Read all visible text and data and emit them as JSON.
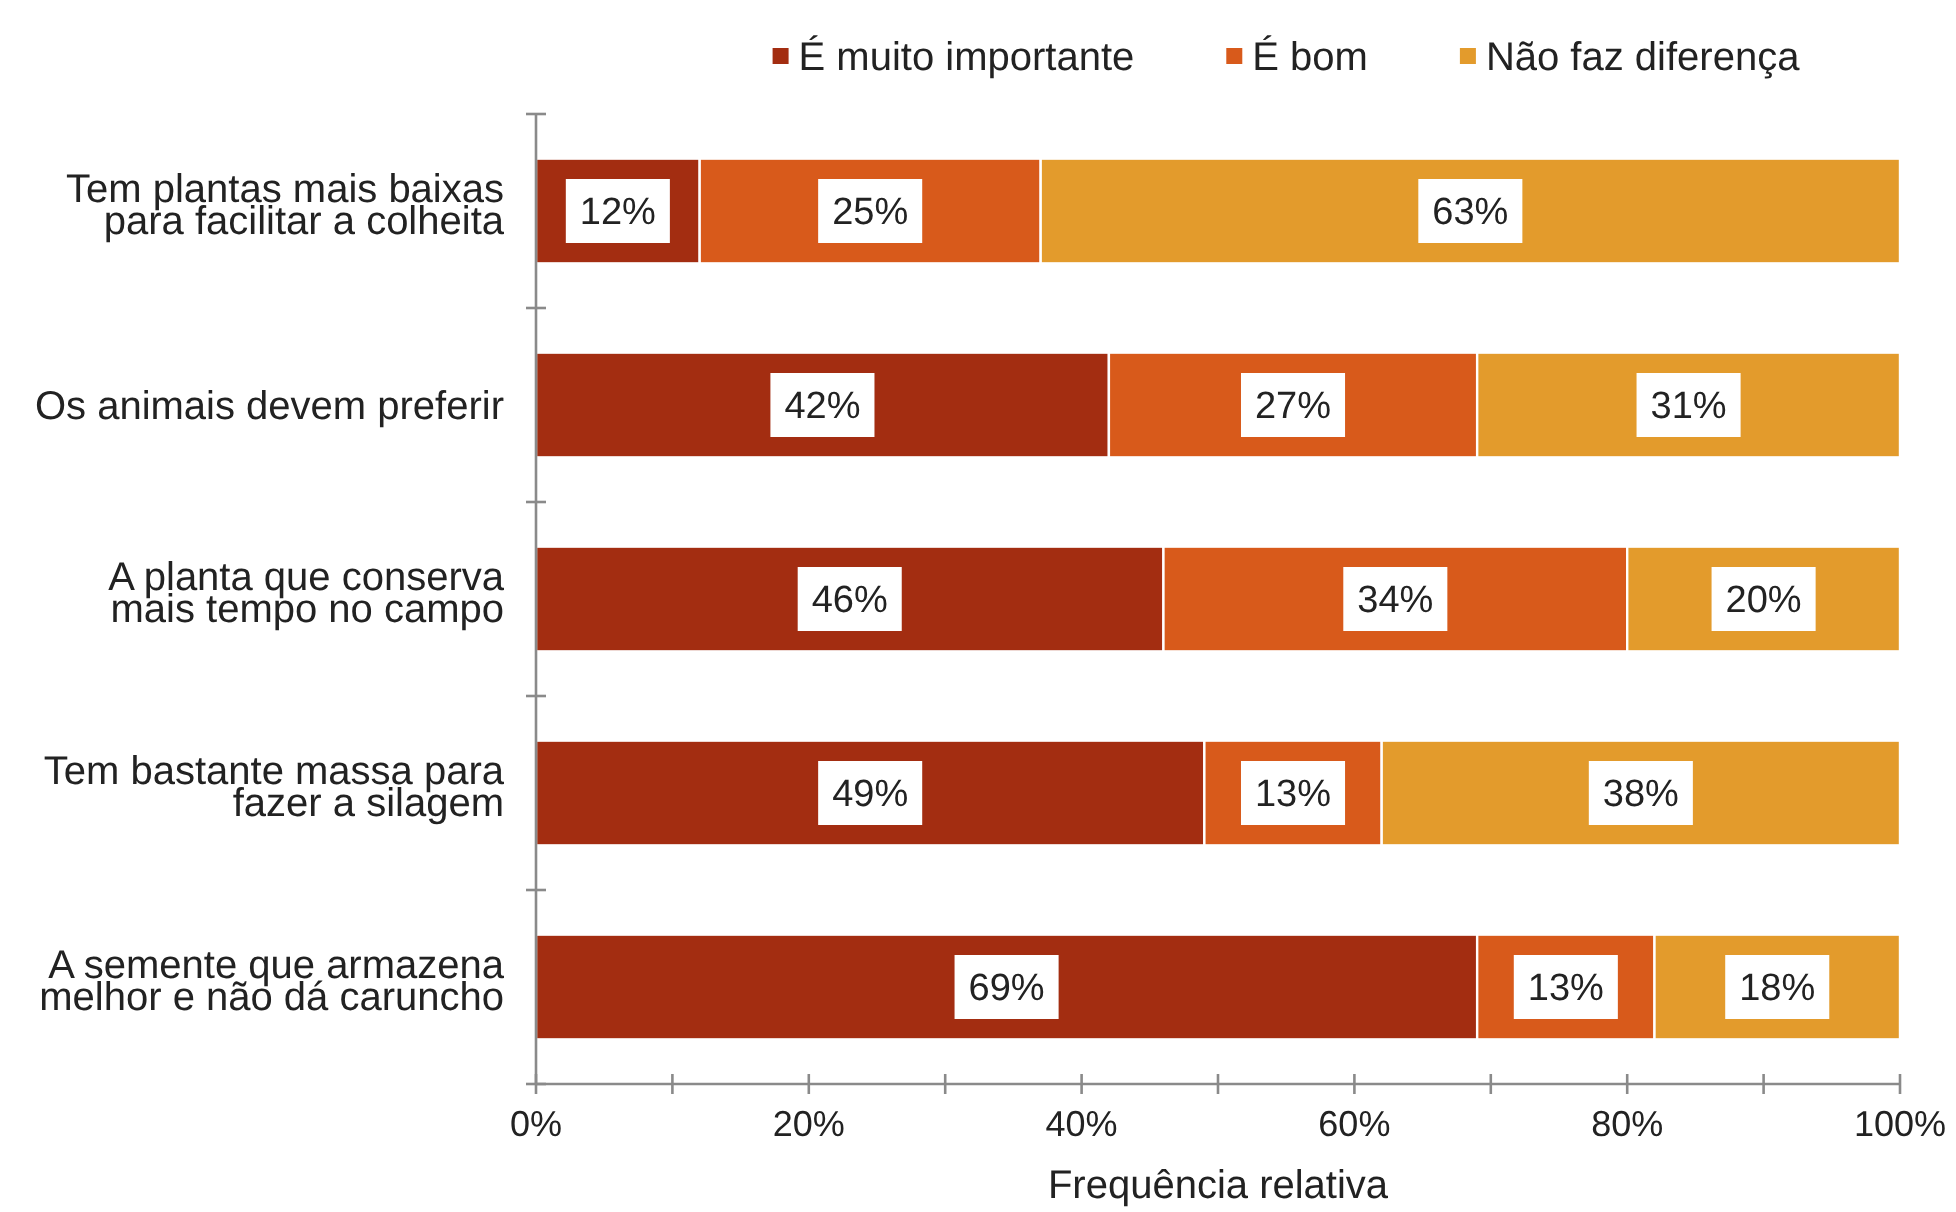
{
  "chart_data": {
    "type": "bar",
    "orientation": "horizontal",
    "stacked": true,
    "categories": [
      "Tem plantas mais baixas\npara facilitar a colheita",
      "Os animais devem preferir",
      "A planta que conserva\nmais tempo no campo",
      "Tem bastante massa para\nfazer a silagem",
      "A semente que armazena\nmelhor e não dá caruncho"
    ],
    "series": [
      {
        "name": "É muito importante",
        "color": "#a32d11",
        "values": [
          12,
          42,
          46,
          49,
          69
        ],
        "value_labels": [
          "12%",
          "42%",
          "46%",
          "49%",
          "69%"
        ]
      },
      {
        "name": "É bom",
        "color": "#d85a1b",
        "values": [
          25,
          27,
          34,
          13,
          13
        ],
        "value_labels": [
          "25%",
          "27%",
          "34%",
          "13%",
          "13%"
        ]
      },
      {
        "name": "Não faz diferença",
        "color": "#e39b2c",
        "values": [
          63,
          31,
          20,
          38,
          18
        ],
        "value_labels": [
          "63%",
          "31%",
          "20%",
          "38%",
          "18%"
        ]
      }
    ],
    "xlabel": "Frequência relativa",
    "xlim": [
      0,
      100
    ],
    "xticks": [
      {
        "value": 0,
        "label": "0%"
      },
      {
        "value": 10,
        "label": null
      },
      {
        "value": 20,
        "label": "20%"
      },
      {
        "value": 30,
        "label": null
      },
      {
        "value": 40,
        "label": "40%"
      },
      {
        "value": 50,
        "label": null
      },
      {
        "value": 60,
        "label": "60%"
      },
      {
        "value": 70,
        "label": null
      },
      {
        "value": 80,
        "label": "80%"
      },
      {
        "value": 90,
        "label": null
      },
      {
        "value": 100,
        "label": "100%"
      }
    ],
    "legend": "top"
  }
}
